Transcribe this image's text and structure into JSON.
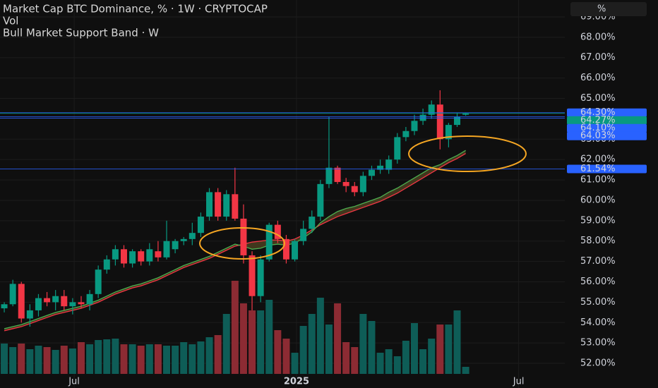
{
  "chart_data": {
    "type": "candlestick",
    "title": "Market Cap BTC Dominance, % · 1W · CRYPTOCAP",
    "volume_label": "Vol",
    "indicator_label": "Bull Market Support Band · W",
    "unit_label": "%",
    "up_color": "#089981",
    "down_color": "#f23645",
    "volume_up_color": "#0e5d57",
    "volume_down_color": "#8c2b33",
    "grid": true,
    "xlim": [
      -0.5,
      65.6
    ],
    "xticks": [
      {
        "value": 8.18,
        "label": "Jul"
      },
      {
        "value": 34.2,
        "label": "2025"
      },
      {
        "value": 60.2,
        "label": "Jul"
      }
    ],
    "ylim": [
      50.79,
      69.83
    ],
    "yticks": [
      {
        "value": 52,
        "label": "52.00%"
      },
      {
        "value": 53,
        "label": "53.00%"
      },
      {
        "value": 54,
        "label": "54.00%"
      },
      {
        "value": 55,
        "label": "55.00%"
      },
      {
        "value": 56,
        "label": "56.00%"
      },
      {
        "value": 57,
        "label": "57.00%"
      },
      {
        "value": 58,
        "label": "58.00%"
      },
      {
        "value": 59,
        "label": "59.00%"
      },
      {
        "value": 60,
        "label": "60.00%"
      },
      {
        "value": 61,
        "label": "61.00%"
      },
      {
        "value": 62,
        "label": "62.00%"
      },
      {
        "value": 63,
        "label": "63.00%"
      },
      {
        "value": 65,
        "label": "65.00%"
      },
      {
        "value": 66,
        "label": "66.00%"
      },
      {
        "value": 67,
        "label": "67.00%"
      },
      {
        "value": 68,
        "label": "68.00%"
      },
      {
        "value": 69,
        "label": "69.00%"
      }
    ],
    "x": [
      0,
      1,
      2,
      3,
      4,
      5,
      6,
      7,
      8,
      9,
      10,
      11,
      12,
      13,
      14,
      15,
      16,
      17,
      18,
      19,
      20,
      21,
      22,
      23,
      24,
      25,
      26,
      27,
      28,
      29,
      30,
      31,
      32,
      33,
      34,
      35,
      36,
      37,
      38,
      39,
      40,
      41,
      42,
      43,
      44,
      45,
      46,
      47,
      48,
      49,
      50,
      51,
      52,
      53,
      54
    ],
    "open": [
      54.7,
      54.9,
      55.9,
      54.2,
      54.6,
      55.2,
      55.0,
      55.3,
      54.8,
      55.0,
      54.9,
      55.4,
      56.6,
      57.1,
      57.6,
      56.9,
      57.5,
      57.0,
      57.5,
      57.2,
      57.6,
      58.0,
      58.1,
      58.4,
      59.2,
      60.4,
      59.2,
      60.3,
      59.1,
      57.3,
      55.3,
      57.1,
      58.8,
      58.1,
      57.1,
      58.0,
      58.6,
      59.2,
      60.8,
      61.6,
      60.9,
      60.7,
      60.4,
      61.2,
      61.5,
      61.5,
      62.0,
      63.1,
      63.4,
      63.9,
      64.2,
      64.7,
      63.0,
      63.7,
      64.2
    ],
    "high": [
      55.0,
      56.1,
      56.0,
      54.9,
      55.4,
      55.5,
      55.6,
      55.6,
      55.2,
      55.3,
      55.6,
      56.8,
      57.3,
      57.8,
      57.8,
      57.6,
      57.6,
      57.9,
      58.0,
      59.0,
      58.1,
      58.2,
      58.9,
      59.4,
      60.6,
      60.6,
      60.5,
      61.6,
      59.8,
      57.5,
      57.3,
      58.9,
      59.0,
      58.3,
      58.1,
      59.0,
      59.5,
      61.0,
      64.1,
      61.7,
      61.1,
      60.9,
      61.4,
      61.7,
      62.0,
      62.2,
      63.3,
      63.6,
      64.2,
      64.5,
      64.9,
      65.4,
      63.8,
      64.3,
      64.3
    ],
    "low": [
      54.5,
      54.8,
      54.0,
      53.8,
      54.3,
      54.8,
      54.6,
      54.6,
      54.4,
      54.7,
      54.6,
      55.2,
      56.4,
      56.8,
      56.7,
      56.7,
      56.8,
      56.8,
      57.0,
      57.1,
      57.4,
      57.8,
      57.8,
      58.2,
      59.0,
      59.0,
      59.0,
      59.0,
      56.9,
      54.6,
      55.0,
      57.0,
      57.9,
      56.9,
      57.0,
      57.8,
      58.4,
      59.0,
      60.6,
      60.8,
      60.4,
      60.2,
      60.2,
      61.0,
      61.3,
      61.3,
      61.8,
      62.9,
      63.2,
      63.7,
      64.0,
      62.5,
      62.6,
      63.6,
      64.15
    ],
    "close": [
      54.9,
      55.9,
      54.2,
      54.6,
      55.2,
      55.0,
      55.3,
      54.8,
      55.0,
      54.9,
      55.4,
      56.6,
      57.1,
      57.6,
      56.9,
      57.5,
      57.0,
      57.6,
      57.2,
      58.0,
      58.0,
      58.1,
      58.4,
      59.2,
      60.4,
      59.2,
      60.3,
      59.1,
      57.3,
      55.3,
      57.1,
      58.8,
      58.1,
      57.1,
      58.0,
      58.6,
      59.2,
      60.8,
      61.6,
      60.9,
      60.7,
      60.4,
      61.2,
      61.5,
      61.7,
      62.0,
      63.1,
      63.4,
      63.9,
      64.2,
      64.7,
      63.0,
      63.7,
      64.1,
      64.27
    ],
    "volume": [
      43,
      38,
      43,
      35,
      40,
      38,
      34,
      40,
      36,
      45,
      42,
      48,
      49,
      50,
      42,
      42,
      40,
      42,
      42,
      40,
      40,
      45,
      42,
      46,
      52,
      55,
      85,
      132,
      100,
      90,
      90,
      105,
      62,
      50,
      30,
      68,
      85,
      108,
      70,
      100,
      45,
      38,
      85,
      75,
      30,
      35,
      25,
      47,
      72,
      35,
      50,
      70,
      70,
      90,
      10
    ],
    "band": [
      {
        "color": "#f23645",
        "values": [
          53.6,
          53.7,
          53.8,
          53.95,
          54.1,
          54.25,
          54.4,
          54.5,
          54.6,
          54.7,
          54.85,
          55.0,
          55.2,
          55.4,
          55.55,
          55.7,
          55.8,
          55.95,
          56.1,
          56.3,
          56.5,
          56.7,
          56.85,
          57.0,
          57.15,
          57.35,
          57.55,
          57.75,
          57.85,
          57.95,
          58.0,
          58.05,
          58.05,
          58.0,
          58.1,
          58.3,
          58.55,
          58.8,
          59.0,
          59.2,
          59.35,
          59.5,
          59.65,
          59.8,
          59.95,
          60.15,
          60.35,
          60.6,
          60.85,
          61.1,
          61.35,
          61.6,
          61.85,
          62.05,
          62.3
        ]
      },
      {
        "color": "#4caf50",
        "values": [
          53.7,
          53.8,
          53.9,
          54.05,
          54.2,
          54.35,
          54.5,
          54.6,
          54.7,
          54.8,
          54.95,
          55.1,
          55.3,
          55.5,
          55.65,
          55.8,
          55.9,
          56.05,
          56.2,
          56.4,
          56.6,
          56.8,
          56.95,
          57.1,
          57.25,
          57.45,
          57.65,
          57.85,
          57.75,
          57.6,
          57.65,
          57.8,
          57.85,
          57.8,
          57.9,
          58.15,
          58.45,
          58.9,
          59.2,
          59.45,
          59.6,
          59.7,
          59.85,
          60.0,
          60.15,
          60.4,
          60.6,
          60.85,
          61.1,
          61.35,
          61.6,
          61.75,
          62.0,
          62.2,
          62.45
        ]
      }
    ],
    "price_lines": [
      {
        "value": 64.3,
        "label": "64.30%",
        "color": "#2962ff"
      },
      {
        "value": 64.27,
        "label": "64.27%",
        "color": "#089981"
      },
      {
        "value": 64.1,
        "label": "64.10%",
        "color": "#2962ff"
      },
      {
        "value": 64.03,
        "label": "64.03%",
        "color": "#2962ff"
      },
      {
        "value": 61.54,
        "label": "61.54%",
        "color": "#2962ff"
      }
    ]
  }
}
